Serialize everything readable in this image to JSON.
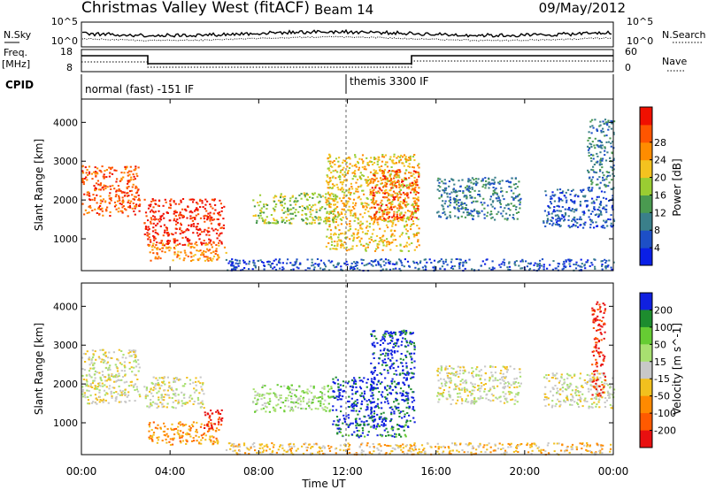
{
  "header": {
    "title": "Christmas Valley West (fitACF)",
    "beam": "Beam 14",
    "date": "09/May/2012"
  },
  "strip_panels": {
    "nsky": {
      "label": "N.Sky",
      "ticks": [
        "10^5",
        "10^0"
      ]
    },
    "nsearch": {
      "label": "N.Search",
      "ticks": [
        "10^5",
        "10^0"
      ]
    },
    "freq": {
      "label_line1": "Freq.",
      "label_line2": "[MHz]",
      "ticks": [
        "18",
        "8"
      ]
    },
    "nave": {
      "label": "Nave",
      "ticks": [
        "60",
        "0"
      ]
    },
    "cpid": {
      "label": "CPID",
      "modes": [
        "normal (fast) -151 IF",
        "themis 3300 IF"
      ]
    }
  },
  "chart_data": [
    {
      "type": "heatmap",
      "quantity": "Power",
      "ylabel": "Slant Range [km]",
      "yticks": [
        1000,
        2000,
        3000,
        4000
      ],
      "ylim": [
        180,
        4600
      ],
      "xlim": [
        0,
        24
      ],
      "colorbar": {
        "label": "Power [dB]",
        "ticks": [
          "4",
          "8",
          "12",
          "16",
          "20",
          "24",
          "28"
        ],
        "colors": [
          "#0a1fe6",
          "#1d4fc6",
          "#3a7f8a",
          "#4a9a50",
          "#9acd32",
          "#f4c21f",
          "#ff8c00",
          "#ff5500",
          "#f01000"
        ]
      },
      "features": [
        {
          "t0": 0.0,
          "t1": 2.6,
          "r0": 1600,
          "r1": 2900,
          "level": 7
        },
        {
          "t0": 2.8,
          "t1": 6.4,
          "r0": 850,
          "r1": 2050,
          "level": 8
        },
        {
          "t0": 3.0,
          "t1": 6.5,
          "r0": 450,
          "r1": 900,
          "level": 6
        },
        {
          "t0": 7.7,
          "t1": 11.5,
          "r0": 1400,
          "r1": 2200,
          "level": 4
        },
        {
          "t0": 11.0,
          "t1": 15.2,
          "r0": 700,
          "r1": 3200,
          "level": 5
        },
        {
          "t0": 13.0,
          "t1": 15.2,
          "r0": 1500,
          "r1": 2800,
          "level": 7
        },
        {
          "t0": 16.0,
          "t1": 19.8,
          "r0": 1500,
          "r1": 2600,
          "level": 2
        },
        {
          "t0": 20.8,
          "t1": 24.0,
          "r0": 1300,
          "r1": 2300,
          "level": 1
        },
        {
          "t0": 22.8,
          "t1": 24.0,
          "r0": 2300,
          "r1": 4100,
          "level": 2
        },
        {
          "t0": 6.5,
          "t1": 24.0,
          "r0": 200,
          "r1": 500,
          "level": 1
        }
      ]
    },
    {
      "type": "heatmap",
      "quantity": "Velocity",
      "ylabel": "Slant Range [km]",
      "yticks": [
        1000,
        2000,
        3000,
        4000
      ],
      "ylim": [
        180,
        4600
      ],
      "xlim": [
        0,
        24
      ],
      "colorbar": {
        "label": "Velocity [m s^-1]",
        "ticks": [
          "200",
          "100",
          "50",
          "15",
          "-15",
          "-50",
          "-100",
          "-200"
        ],
        "colors": [
          "#1020e0",
          "#1d8c2e",
          "#66cc33",
          "#a8e070",
          "#c8c8c8",
          "#f2c01e",
          "#ff8a00",
          "#ff5a00",
          "#e81010"
        ]
      },
      "features": [
        {
          "t0": 0.0,
          "t1": 2.6,
          "r0": 1500,
          "r1": 2900,
          "level": 4
        },
        {
          "t0": 2.8,
          "t1": 5.5,
          "r0": 1400,
          "r1": 2200,
          "level": 4
        },
        {
          "t0": 3.0,
          "t1": 6.2,
          "r0": 450,
          "r1": 1050,
          "level": 6
        },
        {
          "t0": 5.5,
          "t1": 6.4,
          "r0": 850,
          "r1": 1350,
          "level": 8
        },
        {
          "t0": 7.7,
          "t1": 11.3,
          "r0": 1300,
          "r1": 2000,
          "level": 3
        },
        {
          "t0": 11.3,
          "t1": 13.2,
          "r0": 950,
          "r1": 2200,
          "level": 0
        },
        {
          "t0": 13.0,
          "t1": 15.0,
          "r0": 900,
          "r1": 3400,
          "level": 0
        },
        {
          "t0": 11.5,
          "t1": 14.6,
          "r0": 650,
          "r1": 1000,
          "level": 1
        },
        {
          "t0": 16.0,
          "t1": 19.8,
          "r0": 1500,
          "r1": 2500,
          "level": 4
        },
        {
          "t0": 20.8,
          "t1": 24.0,
          "r0": 1400,
          "r1": 2300,
          "level": 4
        },
        {
          "t0": 23.0,
          "t1": 23.6,
          "r0": 1700,
          "r1": 4200,
          "level": 8
        },
        {
          "t0": 6.5,
          "t1": 24.0,
          "r0": 200,
          "r1": 500,
          "level": 5
        }
      ]
    }
  ],
  "xaxis": {
    "label": "Time UT",
    "ticks": [
      "00:00",
      "04:00",
      "08:00",
      "12:00",
      "16:00",
      "20:00",
      "00:00"
    ]
  }
}
